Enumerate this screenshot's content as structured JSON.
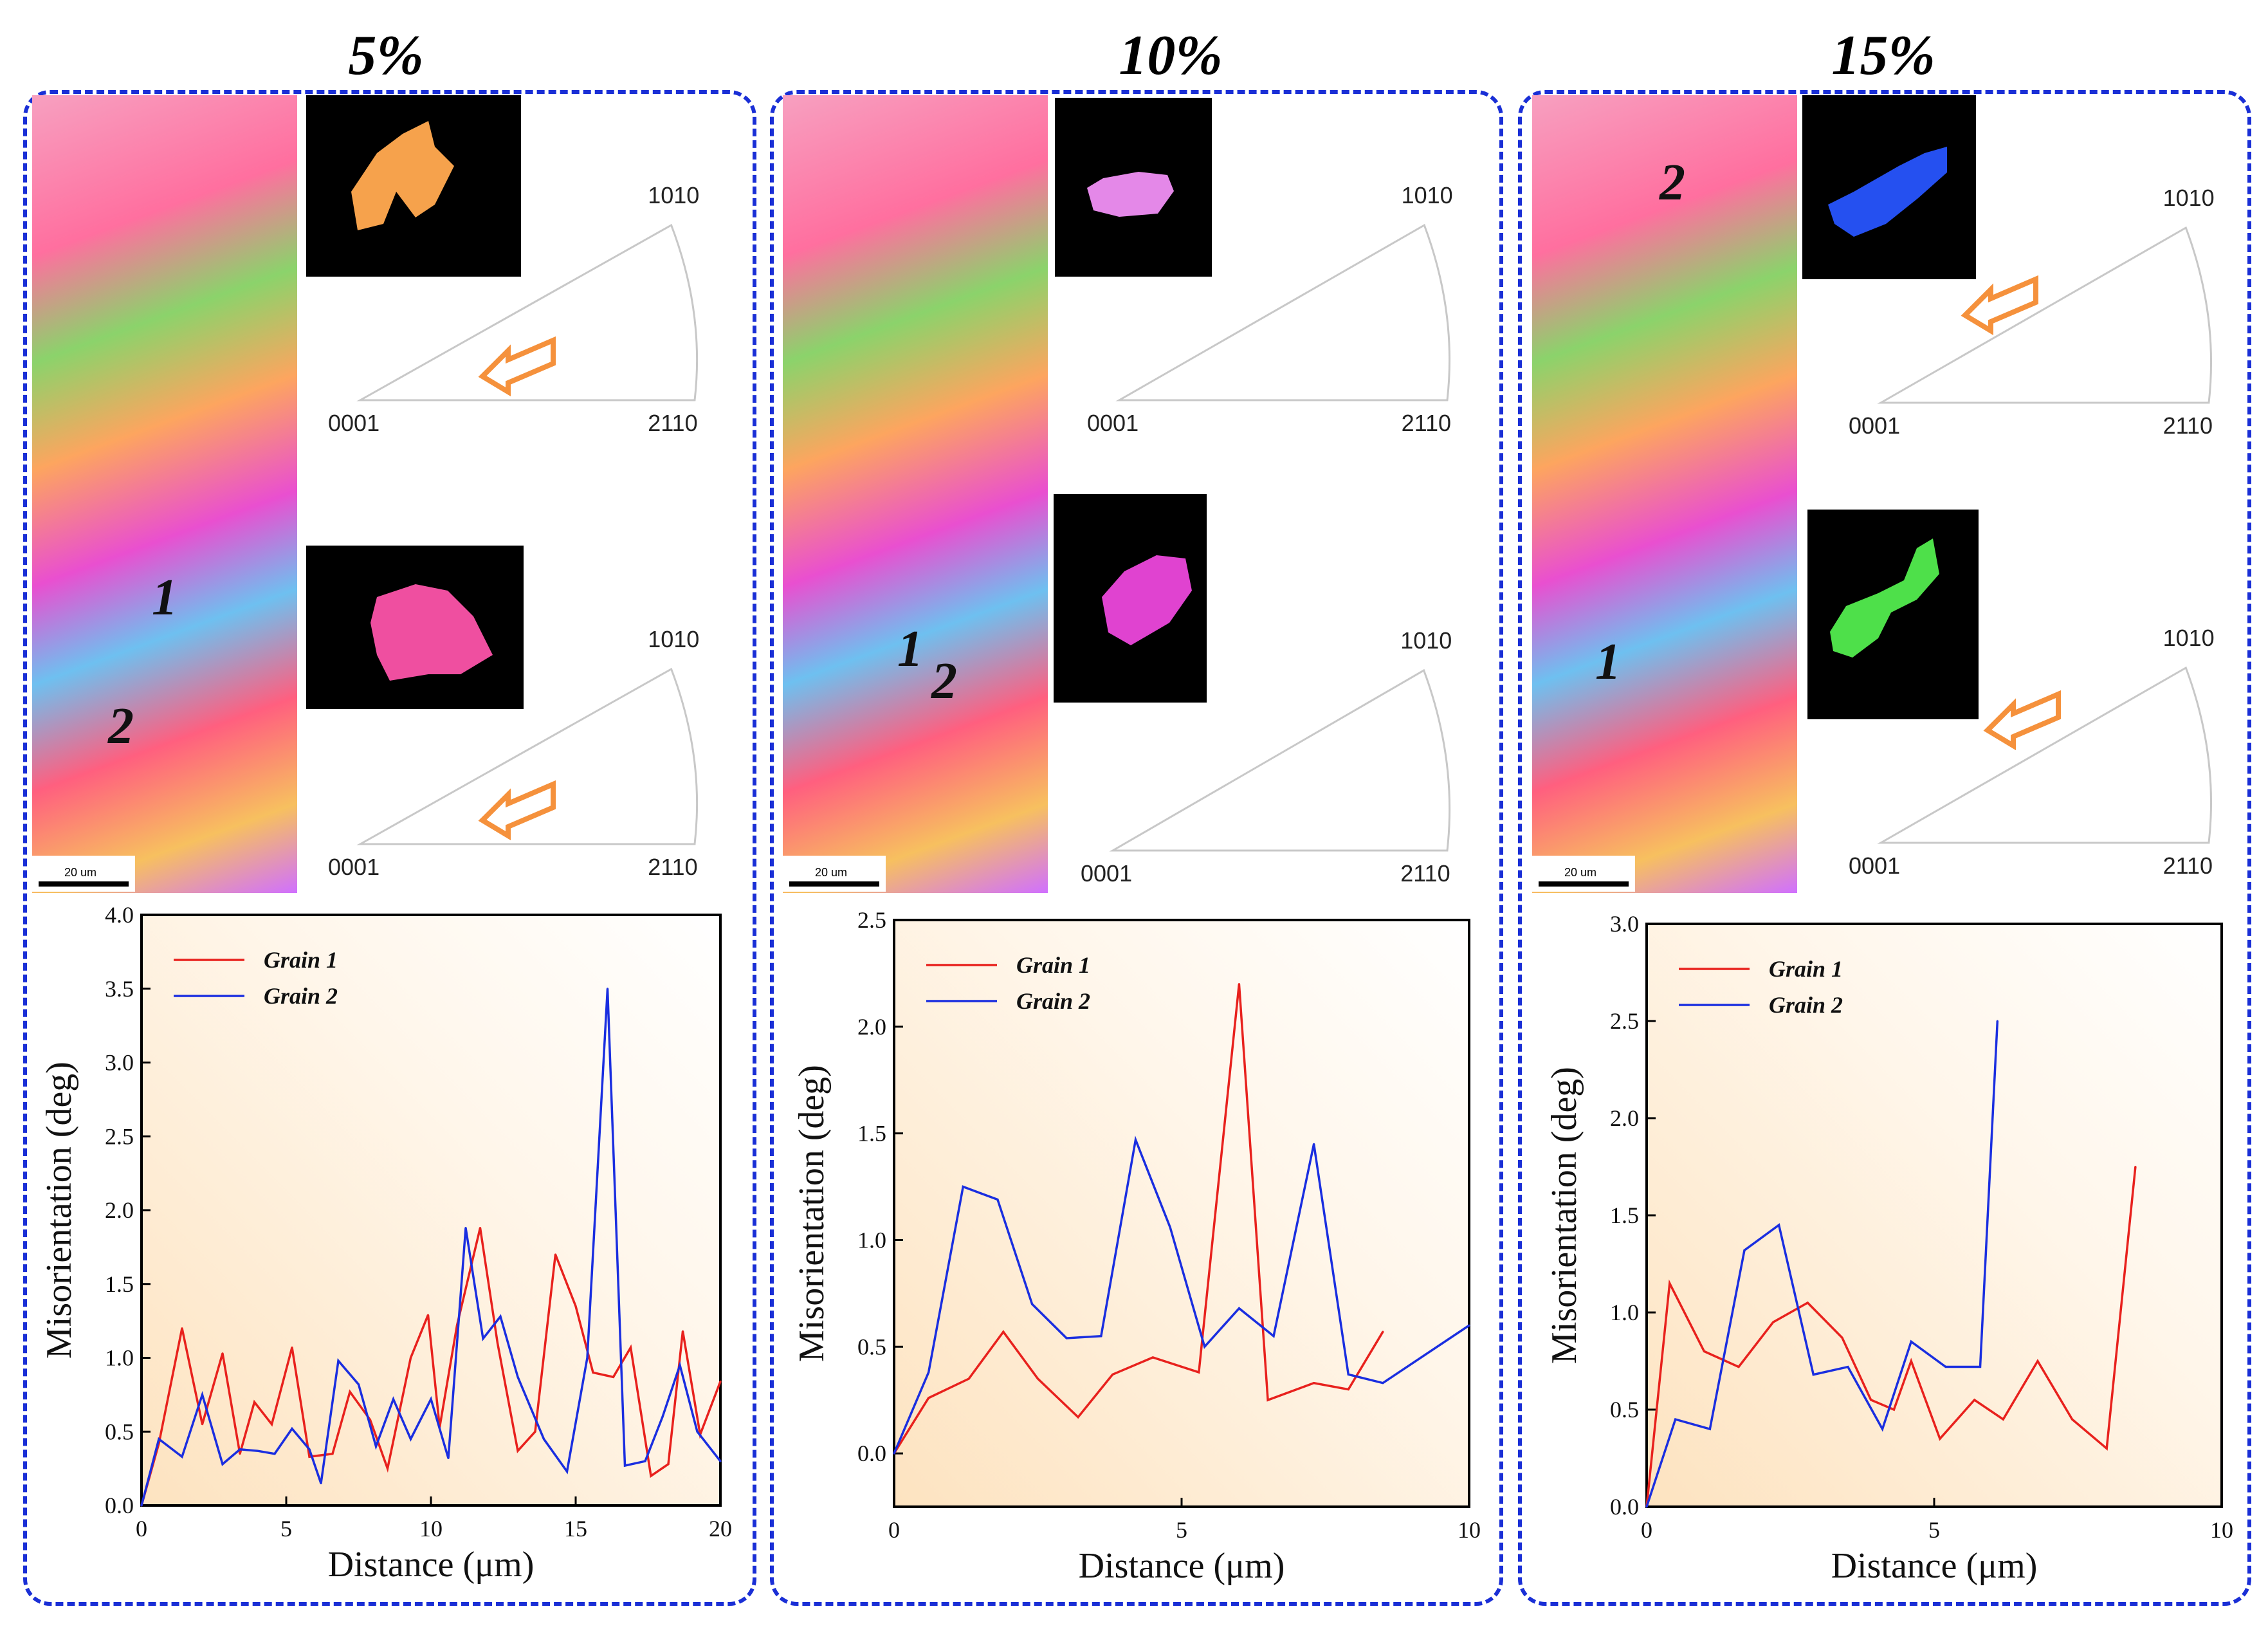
{
  "panels": [
    {
      "title": "5%",
      "grain_labels": [
        "1",
        "2"
      ],
      "scalebar": "20 um",
      "ipf": [
        {
          "top": "1010",
          "left": "0001",
          "right": "2110",
          "grain_color": "#f6a24c"
        },
        {
          "top": "1010",
          "left": "0001",
          "right": "2110",
          "grain_color": "#ef4fa0"
        }
      ]
    },
    {
      "title": "10%",
      "grain_labels": [
        "1",
        "2"
      ],
      "scalebar": "20 um",
      "ipf": [
        {
          "top": "1010",
          "left": "0001",
          "right": "2110",
          "grain_color": "#e488e8"
        },
        {
          "top": "1010",
          "left": "0001",
          "right": "2110",
          "grain_color": "#e043d0"
        }
      ]
    },
    {
      "title": "15%",
      "grain_labels": [
        "2",
        "1"
      ],
      "scalebar": "20 um",
      "ipf": [
        {
          "top": "1010",
          "left": "0001",
          "right": "2110",
          "grain_color": "#2550f0"
        },
        {
          "top": "1010",
          "left": "0001",
          "right": "2110",
          "grain_color": "#4ee04a"
        }
      ]
    }
  ],
  "colors": {
    "grain1": "#e8211d",
    "grain2": "#1a2ee0",
    "border": "#1a2fd6",
    "arrow": "#f5913c"
  },
  "chart_data": [
    {
      "type": "line",
      "xlabel": "Distance (μm)",
      "ylabel": "Misorientation (deg)",
      "xlim": [
        0,
        20
      ],
      "ylim": [
        0,
        4
      ],
      "xticks": [
        "0",
        "5",
        "10",
        "15",
        "20"
      ],
      "yticks": [
        "0.0",
        "0.5",
        "1.0",
        "1.5",
        "2.0",
        "2.5",
        "3.0",
        "3.5",
        "4.0"
      ],
      "legend": "top-left",
      "series": [
        {
          "name": "Grain 1",
          "x": [
            0,
            0.6,
            1.4,
            2.1,
            2.8,
            3.4,
            3.9,
            4.5,
            5.2,
            5.8,
            6.6,
            7.2,
            7.9,
            8.5,
            9.3,
            9.9,
            10.3,
            10.9,
            11.7,
            12.3,
            13.0,
            13.6,
            14.3,
            15.0,
            15.6,
            16.3,
            16.9,
            17.6,
            18.2,
            18.7,
            19.3,
            20.0
          ],
          "y": [
            0.0,
            0.42,
            1.2,
            0.55,
            1.03,
            0.35,
            0.7,
            0.55,
            1.07,
            0.33,
            0.35,
            0.77,
            0.58,
            0.25,
            1.0,
            1.29,
            0.53,
            1.22,
            1.88,
            1.1,
            0.37,
            0.5,
            1.7,
            1.35,
            0.9,
            0.87,
            1.07,
            0.2,
            0.28,
            1.18,
            0.48,
            0.84
          ]
        },
        {
          "name": "Grain 2",
          "x": [
            0,
            0.6,
            1.4,
            2.1,
            2.8,
            3.4,
            4.0,
            4.6,
            5.2,
            5.8,
            6.2,
            6.8,
            7.5,
            8.1,
            8.7,
            9.3,
            10.0,
            10.6,
            11.2,
            11.8,
            12.4,
            13.0,
            13.9,
            14.7,
            15.4,
            16.1,
            16.7,
            17.4,
            18.0,
            18.6,
            19.2,
            20.0
          ],
          "y": [
            0.0,
            0.45,
            0.33,
            0.75,
            0.28,
            0.38,
            0.37,
            0.35,
            0.52,
            0.38,
            0.15,
            0.98,
            0.82,
            0.4,
            0.72,
            0.45,
            0.72,
            0.32,
            1.88,
            1.13,
            1.28,
            0.87,
            0.45,
            0.23,
            1.0,
            3.5,
            0.27,
            0.3,
            0.6,
            0.95,
            0.5,
            0.3
          ]
        }
      ]
    },
    {
      "type": "line",
      "xlabel": "Distance (μm)",
      "ylabel": "Misorientation (deg)",
      "xlim": [
        0,
        10
      ],
      "ylim": [
        -0.25,
        2.5
      ],
      "xticks": [
        "0",
        "5",
        "10"
      ],
      "yticks": [
        "0.0",
        "0.5",
        "1.0",
        "1.5",
        "2.0",
        "2.5"
      ],
      "legend": "top-left",
      "series": [
        {
          "name": "Grain 1",
          "x": [
            0,
            0.6,
            1.3,
            1.9,
            2.5,
            3.2,
            3.8,
            4.5,
            5.3,
            6.0,
            6.5,
            7.3,
            7.9,
            8.5
          ],
          "y": [
            0.0,
            0.26,
            0.35,
            0.57,
            0.35,
            0.17,
            0.37,
            0.45,
            0.38,
            2.2,
            0.25,
            0.33,
            0.3,
            0.57
          ]
        },
        {
          "name": "Grain 2",
          "x": [
            0,
            0.6,
            1.2,
            1.8,
            2.4,
            3.0,
            3.6,
            4.2,
            4.8,
            5.4,
            6.0,
            6.6,
            7.3,
            7.9,
            8.5,
            10.0
          ],
          "y": [
            0.0,
            0.38,
            1.25,
            1.19,
            0.7,
            0.54,
            0.55,
            1.47,
            1.06,
            0.5,
            0.68,
            0.55,
            1.45,
            0.37,
            0.33,
            0.6
          ]
        }
      ]
    },
    {
      "type": "line",
      "xlabel": "Distance (μm)",
      "ylabel": "Misorientation (deg)",
      "xlim": [
        0,
        10
      ],
      "ylim": [
        0,
        3
      ],
      "xticks": [
        "0",
        "5",
        "10"
      ],
      "yticks": [
        "0.0",
        "0.5",
        "1.0",
        "1.5",
        "2.0",
        "2.5",
        "3.0"
      ],
      "legend": "top-left",
      "series": [
        {
          "name": "Grain 1",
          "x": [
            0,
            0.4,
            1.0,
            1.6,
            2.2,
            2.8,
            3.4,
            3.9,
            4.3,
            4.6,
            5.1,
            5.7,
            6.2,
            6.8,
            7.4,
            8.0,
            8.5
          ],
          "y": [
            0.0,
            1.15,
            0.8,
            0.72,
            0.95,
            1.05,
            0.87,
            0.55,
            0.5,
            0.75,
            0.35,
            0.55,
            0.45,
            0.75,
            0.45,
            0.3,
            1.75
          ]
        },
        {
          "name": "Grain 2",
          "x": [
            0,
            0.5,
            1.1,
            1.7,
            2.3,
            2.9,
            3.5,
            4.1,
            4.6,
            5.2,
            5.8,
            6.1
          ],
          "y": [
            0.0,
            0.45,
            0.4,
            1.32,
            1.45,
            0.68,
            0.72,
            0.4,
            0.85,
            0.72,
            0.72,
            2.5
          ]
        }
      ]
    }
  ]
}
